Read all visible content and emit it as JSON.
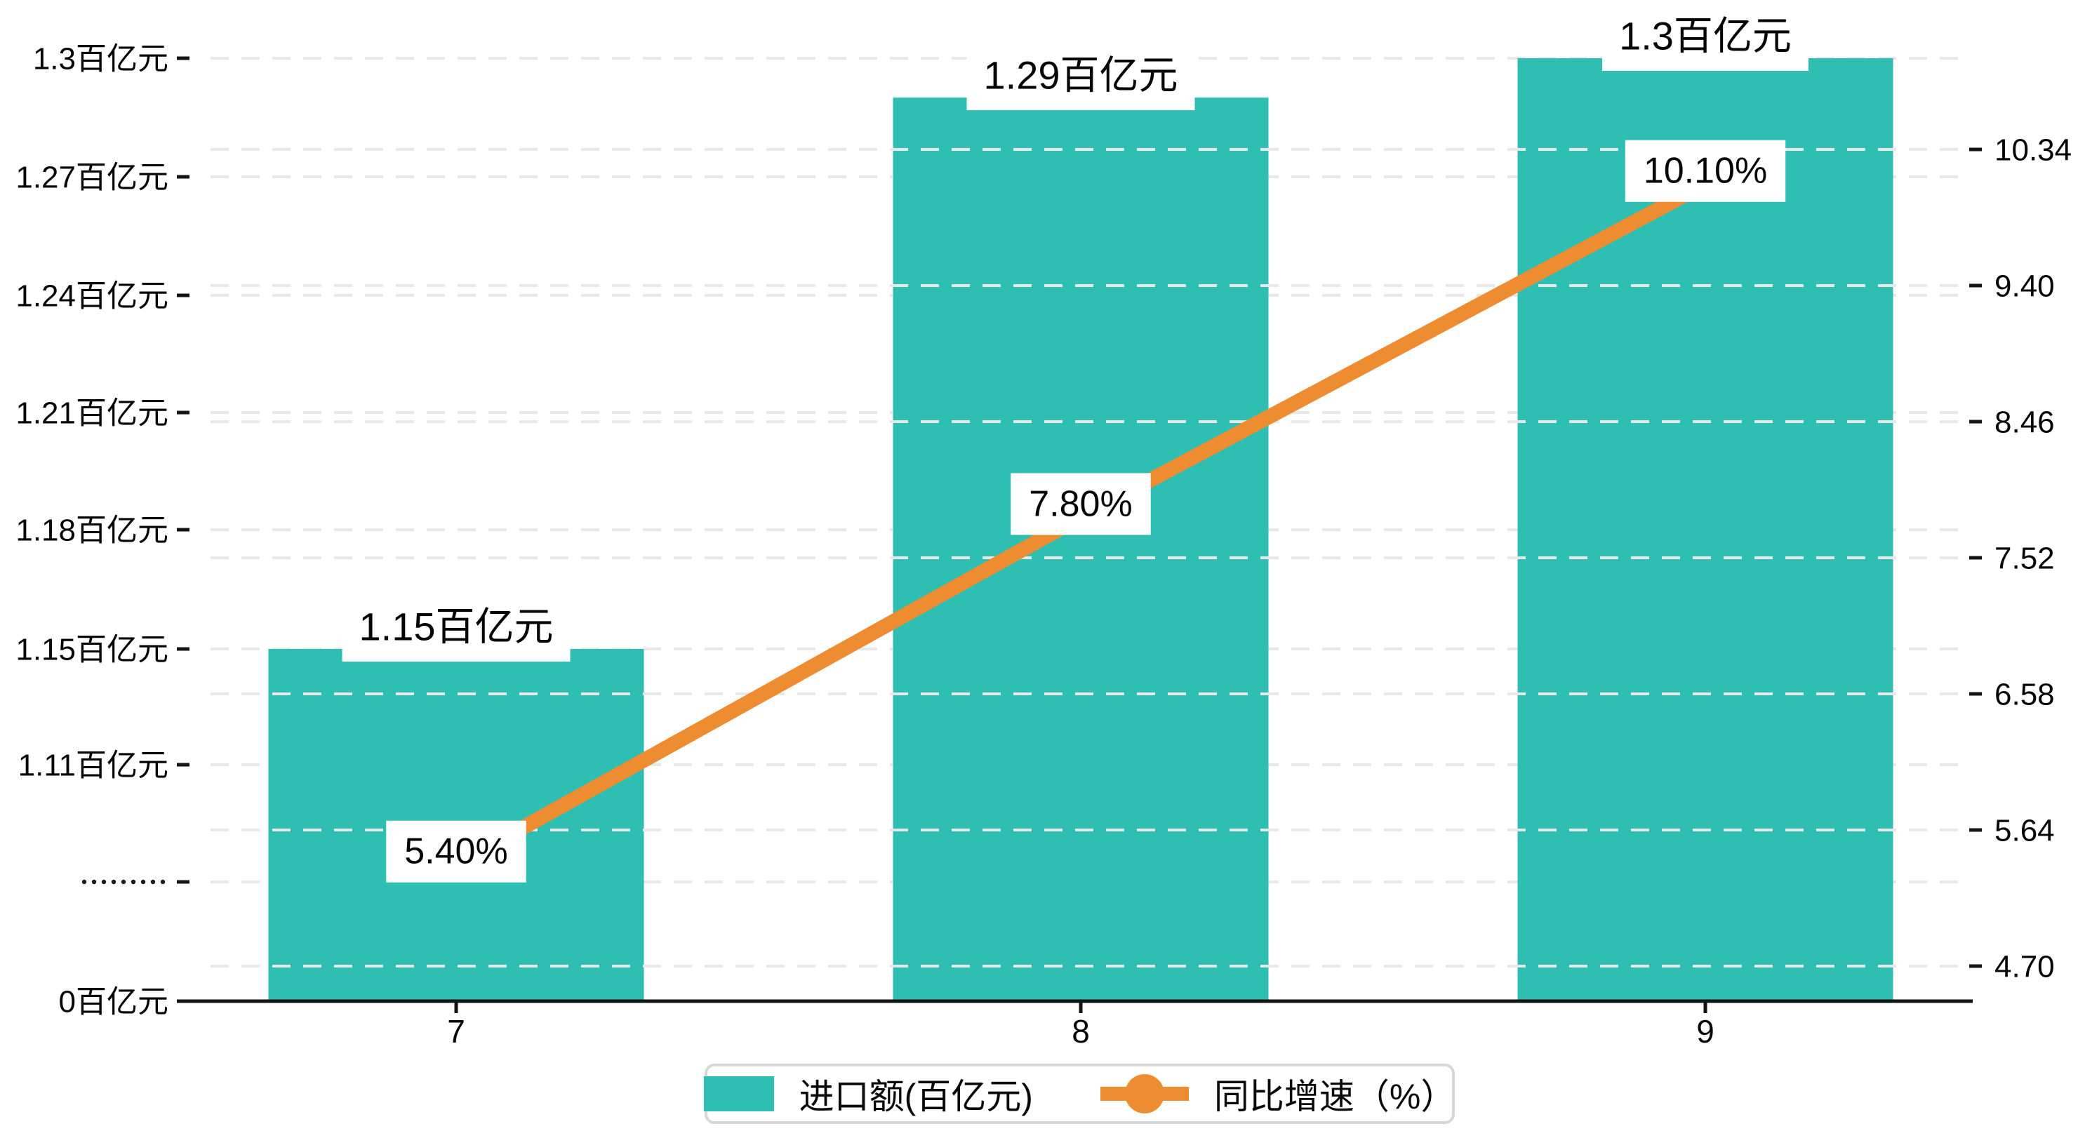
{
  "chart_data": {
    "type": "bar+line",
    "categories": [
      "7",
      "8",
      "9"
    ],
    "series": [
      {
        "name": "进口额(百亿元)",
        "type": "bar",
        "axis": "left",
        "values": [
          1.15,
          1.29,
          1.3
        ],
        "labels": [
          "1.15百亿元",
          "1.29百亿元",
          "1.3百亿元"
        ],
        "color": "#2fbeb2"
      },
      {
        "name": "同比增速（%）",
        "type": "line",
        "axis": "right",
        "values": [
          5.4,
          7.8,
          10.1
        ],
        "labels": [
          "5.40%",
          "7.80%",
          "10.10%"
        ],
        "color": "#ee8c31"
      }
    ],
    "left_axis": {
      "tick_labels_top_to_bottom": [
        "1.3百亿元",
        "1.27百亿元",
        "1.24百亿元",
        "1.21百亿元",
        "1.18百亿元",
        "1.15百亿元",
        "1.11百亿元",
        "•••••••••",
        "0百亿元"
      ],
      "has_break": true,
      "break_label": "•••••••••"
    },
    "right_axis": {
      "tick_labels_top_to_bottom": [
        "10.34",
        "9.40",
        "8.46",
        "7.52",
        "6.58",
        "5.64",
        "4.70"
      ],
      "min": 4.7,
      "max": 10.34
    },
    "legend": {
      "items": [
        {
          "label": "进口额(百亿元)",
          "color": "#2fbeb2",
          "marker": "bar"
        },
        {
          "label": "同比增速（%）",
          "color": "#ee8c31",
          "marker": "line-dot"
        }
      ]
    },
    "grid": "dashed",
    "colors": {
      "bar": "#2fbeb2",
      "line": "#ee8c31",
      "gridline": "#e8e8e8",
      "axis": "#141414",
      "text": "#060606",
      "label_box": "#ffffff",
      "legend_border": "#d7d7d7"
    }
  }
}
